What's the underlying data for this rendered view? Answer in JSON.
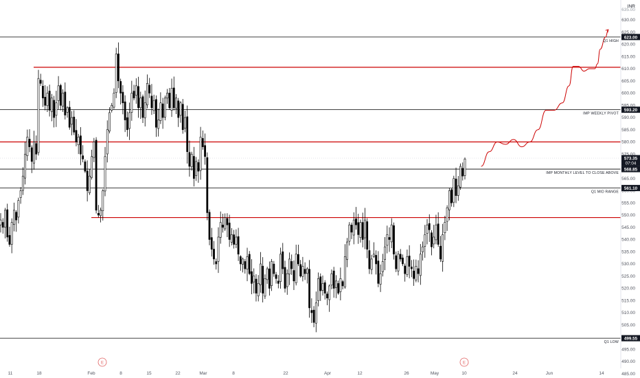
{
  "chart_data": {
    "type": "candlestick",
    "currency": "INR",
    "top_partial_label": "635.00",
    "y_ticks": [
      "630.00",
      "625.00",
      "620.00",
      "615.00",
      "610.00",
      "605.00",
      "600.00",
      "595.00",
      "590.00",
      "585.00",
      "580.00",
      "575.00",
      "570.00",
      "565.00",
      "560.00",
      "555.00",
      "550.00",
      "545.00",
      "540.00",
      "535.00",
      "530.00",
      "525.00",
      "520.00",
      "515.00",
      "510.00",
      "505.00",
      "500.00",
      "495.00",
      "490.00",
      "485.00"
    ],
    "ylim": [
      484,
      635
    ],
    "x_labels": [
      "11",
      "18",
      "Feb",
      "8",
      "15",
      "22",
      "Mar",
      "8",
      "22",
      "Apr",
      "12",
      "26",
      "May",
      "10",
      "24",
      "Jun",
      "14"
    ],
    "earnings_marker": "E",
    "levels": [
      {
        "value": 623.0,
        "color": "#000000",
        "label": "Q1 HIGH",
        "badge": "623.00"
      },
      {
        "value": 610.6,
        "color": "#cc0000",
        "label": "",
        "badge": ""
      },
      {
        "value": 593.2,
        "color": "#000000",
        "label": "IMP WEEKLY PIVOT",
        "badge": "593.20"
      },
      {
        "value": 580.0,
        "color": "#cc0000",
        "label": "",
        "badge": ""
      },
      {
        "value": 568.85,
        "color": "#000000",
        "label": "IMP MONTHLY LEVEL TO CLOSE ABOVE",
        "badge": "568.85"
      },
      {
        "value": 561.1,
        "color": "#000000",
        "label": "Q1 MID RANGE",
        "badge": "561.10"
      },
      {
        "value": 549.0,
        "color": "#cc0000",
        "label": "",
        "badge": ""
      },
      {
        "value": 499.55,
        "color": "#000000",
        "label": "Q1 LOW",
        "badge": "499.55"
      }
    ],
    "last_price": {
      "value": 573.35,
      "label": "573.35",
      "countdown": "07:04"
    },
    "closes": [
      548,
      545,
      552,
      541,
      538,
      547,
      552,
      548,
      556,
      560,
      566,
      575,
      582,
      578,
      572,
      580,
      575,
      606,
      604,
      598,
      595,
      600,
      593,
      598,
      590,
      596,
      603,
      595,
      600,
      591,
      594,
      586,
      590,
      584,
      580,
      582,
      575,
      573,
      568,
      560,
      566,
      574,
      580,
      552,
      550,
      552,
      560,
      574,
      585,
      592,
      595,
      600,
      616,
      605,
      600,
      596,
      589,
      585,
      592,
      600,
      598,
      603,
      594,
      598,
      590,
      596,
      604,
      600,
      594,
      597,
      586,
      589,
      596,
      590,
      598,
      600,
      594,
      602,
      594,
      598,
      590,
      596,
      585,
      590,
      576,
      570,
      575,
      565,
      572,
      568,
      582,
      578,
      574,
      551,
      540,
      536,
      532,
      530,
      541,
      547,
      545,
      549,
      546,
      540,
      542,
      538,
      541,
      534,
      530,
      532,
      528,
      533,
      526,
      522,
      525,
      518,
      522,
      530,
      518,
      524,
      528,
      520,
      531,
      526,
      524,
      522,
      534,
      528,
      520,
      526,
      532,
      528,
      523,
      534,
      530,
      525,
      529,
      526,
      528,
      512,
      510,
      506,
      514,
      524,
      519,
      522,
      518,
      516,
      521,
      526,
      520,
      523,
      518,
      524,
      521,
      533,
      539,
      546,
      543,
      548,
      546,
      542,
      547,
      540,
      548,
      536,
      528,
      532,
      534,
      530,
      522,
      526,
      531,
      537,
      542,
      540,
      546,
      534,
      528,
      534,
      532,
      530,
      526,
      533,
      529,
      528,
      524,
      529,
      526,
      534,
      537,
      542,
      546,
      544,
      537,
      541,
      546,
      538,
      532,
      542,
      547,
      553,
      560,
      555,
      565,
      558,
      562,
      570,
      566,
      573
    ],
    "projection": [
      [
        12,
        570
      ],
      [
        18,
        576
      ],
      [
        24,
        580
      ],
      [
        30,
        579
      ],
      [
        36,
        581
      ],
      [
        42,
        578
      ],
      [
        48,
        580
      ],
      [
        54,
        585
      ],
      [
        60,
        593
      ],
      [
        66,
        593
      ],
      [
        72,
        596
      ],
      [
        77,
        603
      ],
      [
        80,
        611
      ],
      [
        84,
        611
      ],
      [
        88,
        609
      ],
      [
        92,
        610
      ],
      [
        96,
        610
      ],
      [
        98,
        612
      ],
      [
        100,
        618
      ],
      [
        104,
        623
      ],
      [
        106,
        626
      ]
    ]
  }
}
